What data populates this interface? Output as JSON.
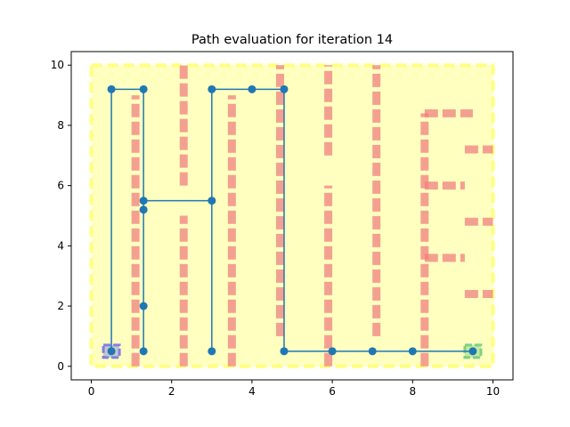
{
  "chart_data": {
    "type": "line",
    "title": "Path evaluation for iteration 14",
    "xlabel": "",
    "ylabel": "",
    "xlim": [
      -0.5,
      10.5
    ],
    "ylim": [
      -0.45,
      10.45
    ],
    "xticks": [
      0,
      2,
      4,
      6,
      8,
      10
    ],
    "yticks": [
      0,
      2,
      4,
      6,
      8,
      10
    ],
    "grid": false,
    "legend": "none",
    "colors": {
      "region_fill": "#ffffc0",
      "region_edge": "#ffff80",
      "obstacle": "#f08080",
      "start": "#8080e0",
      "goal": "#80d080",
      "path": "#1f77b4"
    },
    "region": {
      "x": [
        0,
        10
      ],
      "y": [
        0,
        10
      ]
    },
    "obstacles": [
      [
        [
          1.1,
          0
        ],
        [
          1.1,
          9
        ]
      ],
      [
        [
          2.3,
          6
        ],
        [
          2.3,
          10
        ]
      ],
      [
        [
          2.3,
          0
        ],
        [
          2.3,
          5
        ]
      ],
      [
        [
          3.5,
          0
        ],
        [
          3.5,
          9
        ]
      ],
      [
        [
          4.7,
          1
        ],
        [
          4.7,
          10
        ]
      ],
      [
        [
          5.9,
          7
        ],
        [
          5.9,
          10
        ]
      ],
      [
        [
          5.9,
          0
        ],
        [
          5.9,
          6
        ]
      ],
      [
        [
          7.1,
          1
        ],
        [
          7.1,
          10
        ]
      ],
      [
        [
          8.3,
          0
        ],
        [
          8.3,
          8.4
        ]
      ],
      [
        [
          8.3,
          8.4
        ],
        [
          9.5,
          8.4
        ]
      ],
      [
        [
          9.3,
          7.2
        ],
        [
          10,
          7.2
        ]
      ],
      [
        [
          8.3,
          6.0
        ],
        [
          9.3,
          6.0
        ]
      ],
      [
        [
          9.3,
          4.8
        ],
        [
          10,
          4.8
        ]
      ],
      [
        [
          8.3,
          3.6
        ],
        [
          9.3,
          3.6
        ]
      ],
      [
        [
          9.3,
          2.4
        ],
        [
          10,
          2.4
        ]
      ]
    ],
    "start": {
      "x": 0.5,
      "y": 0.5
    },
    "goal": {
      "x": 9.5,
      "y": 0.5
    },
    "series": [
      {
        "x": [
          0.5,
          0.5,
          1.3,
          1.3,
          1.3,
          1.3,
          1.3,
          1.3,
          3.0,
          3.0,
          3.0,
          3.0,
          4.0,
          4.8,
          4.8,
          6.0,
          7.0,
          8.0,
          9.5
        ],
        "y": [
          0.5,
          9.2,
          9.2,
          5.5,
          5.2,
          2.0,
          0.5,
          5.5,
          5.5,
          0.5,
          5.5,
          9.2,
          9.2,
          9.2,
          0.5,
          0.5,
          0.5,
          0.5,
          0.5
        ],
        "markers": [
          [
            0.5,
            0.5
          ],
          [
            0.5,
            9.2
          ],
          [
            1.3,
            9.2
          ],
          [
            1.3,
            5.5
          ],
          [
            1.3,
            5.2
          ],
          [
            1.3,
            2.0
          ],
          [
            1.3,
            0.5
          ],
          [
            3.0,
            9.2
          ],
          [
            3.0,
            5.5
          ],
          [
            3.0,
            0.5
          ],
          [
            4.0,
            9.2
          ],
          [
            4.8,
            9.2
          ],
          [
            4.8,
            0.5
          ],
          [
            6.0,
            0.5
          ],
          [
            7.0,
            0.5
          ],
          [
            8.0,
            0.5
          ],
          [
            9.5,
            0.5
          ]
        ]
      }
    ]
  }
}
